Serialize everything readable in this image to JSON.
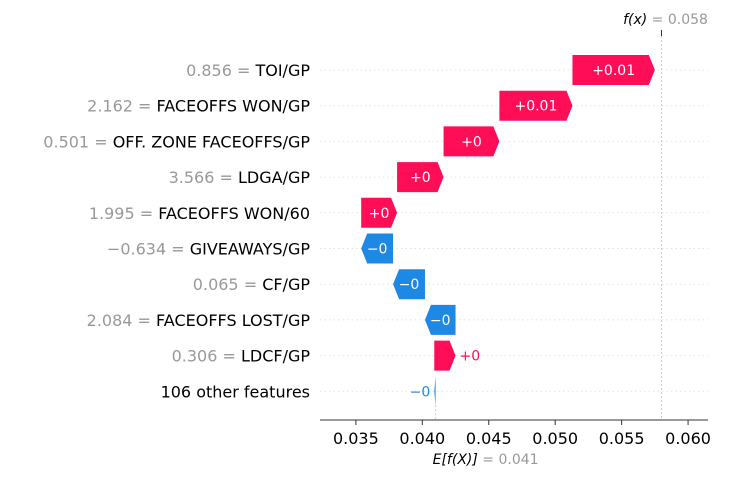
{
  "chart_data": {
    "type": "waterfall",
    "base_value": 0.041,
    "output_value": 0.058,
    "base_label": "E[f(X)]",
    "output_label": "f(x)",
    "base_value_text": "= 0.041",
    "output_value_text": "= 0.058",
    "xlim": [
      0.0323,
      0.0615
    ],
    "x_ticks": [
      0.035,
      0.04,
      0.045,
      0.05,
      0.055,
      0.06
    ],
    "x_tick_labels": [
      "0.035",
      "0.040",
      "0.045",
      "0.050",
      "0.055",
      "0.060"
    ],
    "features": [
      {
        "value": "0.856",
        "name": "TOI/GP",
        "contribution": 0.0062,
        "label": "+0.01"
      },
      {
        "value": "2.162",
        "name": "FACEOFFS WON/GP",
        "contribution": 0.0055,
        "label": "+0.01"
      },
      {
        "value": "0.501",
        "name": "OFF. ZONE FACEOFFS/GP",
        "contribution": 0.0042,
        "label": "+0"
      },
      {
        "value": "3.566",
        "name": "LDGA/GP",
        "contribution": 0.0035,
        "label": "+0"
      },
      {
        "value": "1.995",
        "name": "FACEOFFS WON/60",
        "contribution": 0.0027,
        "label": "+0"
      },
      {
        "value": "−0.634",
        "name": "GIVEAWAYS/GP",
        "contribution": -0.0024,
        "label": "−0"
      },
      {
        "value": "0.065",
        "name": "CF/GP",
        "contribution": -0.0024,
        "label": "−0"
      },
      {
        "value": "2.084",
        "name": "FACEOFFS LOST/GP",
        "contribution": -0.0023,
        "label": "−0"
      },
      {
        "value": "0.306",
        "name": "LDCF/GP",
        "contribution": 0.0016,
        "label": "+0"
      },
      {
        "value": "",
        "name": "106 other features",
        "contribution": -0.0001,
        "label": "−0"
      }
    ],
    "colors": {
      "positive": "#ff0d57",
      "negative": "#1e88e5",
      "separator": "#c8c8c8"
    }
  }
}
